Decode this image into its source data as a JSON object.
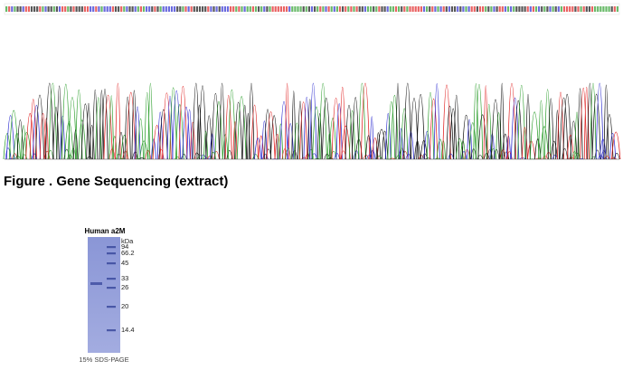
{
  "figure": {
    "caption": "Figure . Gene Sequencing (extract)",
    "gel": {
      "title": "Human a2M",
      "unit": "kDa",
      "markers": [
        "94",
        "66.2",
        "45",
        "33",
        "26",
        "20",
        "14.4"
      ],
      "footer": "15% SDS-PAGE"
    }
  }
}
